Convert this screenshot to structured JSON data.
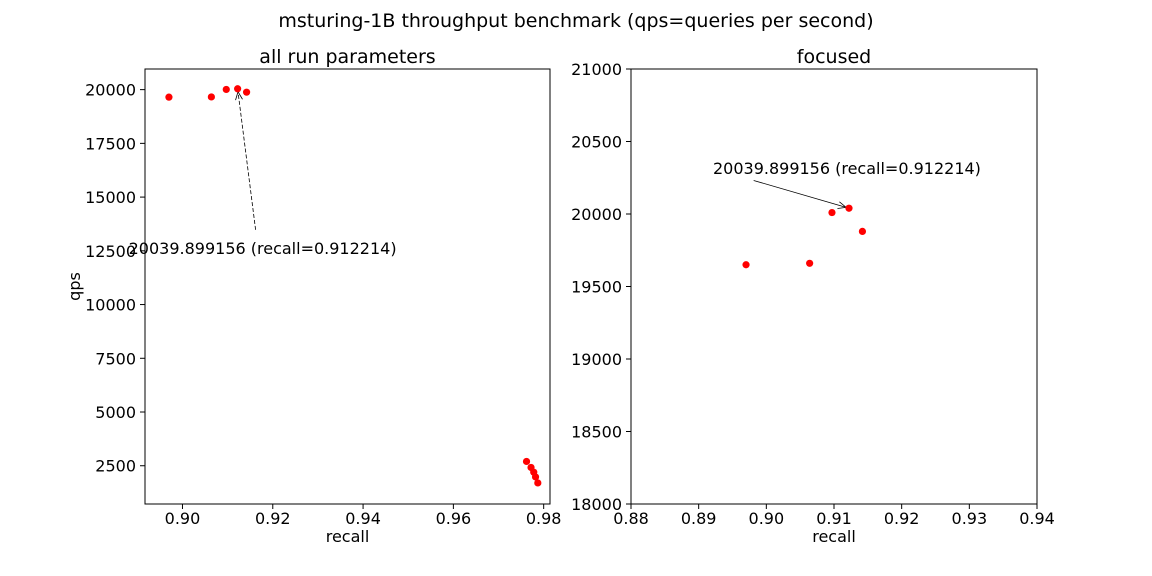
{
  "figure": {
    "suptitle": "msturing-1B throughput benchmark (qps=queries per second)"
  },
  "chart_data": [
    {
      "type": "scatter",
      "title": "all run parameters",
      "xlabel": "recall",
      "ylabel": "qps",
      "xlim": [
        0.8917,
        0.9814
      ],
      "ylim": [
        720,
        20960
      ],
      "xticks": [
        0.9,
        0.92,
        0.94,
        0.96,
        0.98
      ],
      "xtick_labels": [
        "0.90",
        "0.92",
        "0.94",
        "0.96",
        "0.98"
      ],
      "yticks": [
        2500,
        5000,
        7500,
        10000,
        12500,
        15000,
        17500,
        20000
      ],
      "ytick_labels": [
        "2500",
        "5000",
        "7500",
        "10000",
        "12500",
        "15000",
        "17500",
        "20000"
      ],
      "grid": false,
      "marker_color": "#ff0000",
      "series": [
        {
          "points": [
            {
              "x": 0.897,
              "y": 19650
            },
            {
              "x": 0.9064,
              "y": 19660
            },
            {
              "x": 0.9097,
              "y": 20010
            },
            {
              "x": 0.912214,
              "y": 20039.899156
            },
            {
              "x": 0.9142,
              "y": 19880
            },
            {
              "x": 0.9762,
              "y": 2700
            },
            {
              "x": 0.9772,
              "y": 2420
            },
            {
              "x": 0.9778,
              "y": 2200
            },
            {
              "x": 0.9782,
              "y": 1980
            },
            {
              "x": 0.9787,
              "y": 1700
            }
          ]
        }
      ],
      "annotation": {
        "text": "20039.899156 (recall=0.912214)",
        "point": {
          "x": 0.912214,
          "y": 20039.899156
        }
      }
    },
    {
      "type": "scatter",
      "title": "focused",
      "xlabel": "recall",
      "ylabel": "",
      "xlim": [
        0.88,
        0.94
      ],
      "ylim": [
        18000,
        21000
      ],
      "xticks": [
        0.88,
        0.89,
        0.9,
        0.91,
        0.92,
        0.93,
        0.94
      ],
      "xtick_labels": [
        "0.88",
        "0.89",
        "0.90",
        "0.91",
        "0.92",
        "0.93",
        "0.94"
      ],
      "yticks": [
        18000,
        18500,
        19000,
        19500,
        20000,
        20500,
        21000
      ],
      "ytick_labels": [
        "18000",
        "18500",
        "19000",
        "19500",
        "20000",
        "20500",
        "21000"
      ],
      "grid": false,
      "marker_color": "#ff0000",
      "series": [
        {
          "points": [
            {
              "x": 0.897,
              "y": 19650
            },
            {
              "x": 0.9064,
              "y": 19660
            },
            {
              "x": 0.9097,
              "y": 20010
            },
            {
              "x": 0.912214,
              "y": 20039.899156
            },
            {
              "x": 0.9142,
              "y": 19880
            }
          ]
        }
      ],
      "annotation": {
        "text": "20039.899156 (recall=0.912214)",
        "point": {
          "x": 0.912214,
          "y": 20039.899156
        }
      }
    }
  ]
}
